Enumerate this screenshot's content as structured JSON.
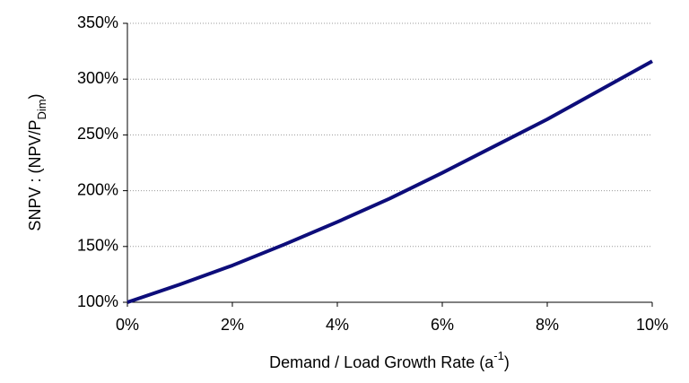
{
  "chart_data": {
    "type": "line",
    "y_label": [
      "SNPV : (NPV/P",
      "Dim",
      ")"
    ],
    "x_label": [
      "Demand / Load Growth Rate (a",
      "-1",
      ")"
    ],
    "x": [
      0,
      1,
      2,
      3,
      4,
      5,
      6,
      7,
      8,
      9,
      10
    ],
    "series": [
      {
        "color": "#0d0d7a",
        "values": [
          100,
          116,
          133,
          152,
          172,
          193,
          216,
          240,
          264,
          290,
          316
        ]
      }
    ],
    "xlim": [
      0,
      10
    ],
    "xticks": [
      {
        "value": 0,
        "label": "0%"
      },
      {
        "value": 2,
        "label": "2%"
      },
      {
        "value": 4,
        "label": "4%"
      },
      {
        "value": 6,
        "label": "6%"
      },
      {
        "value": 8,
        "label": "8%"
      },
      {
        "value": 10,
        "label": "10%"
      }
    ],
    "ylim": [
      100,
      350
    ],
    "yticks": [
      {
        "value": 100,
        "label": "100%"
      },
      {
        "value": 150,
        "label": "150%"
      },
      {
        "value": 200,
        "label": "200%"
      },
      {
        "value": 250,
        "label": "250%"
      },
      {
        "value": 300,
        "label": "300%"
      },
      {
        "value": 350,
        "label": "350%"
      }
    ],
    "grid": true
  }
}
